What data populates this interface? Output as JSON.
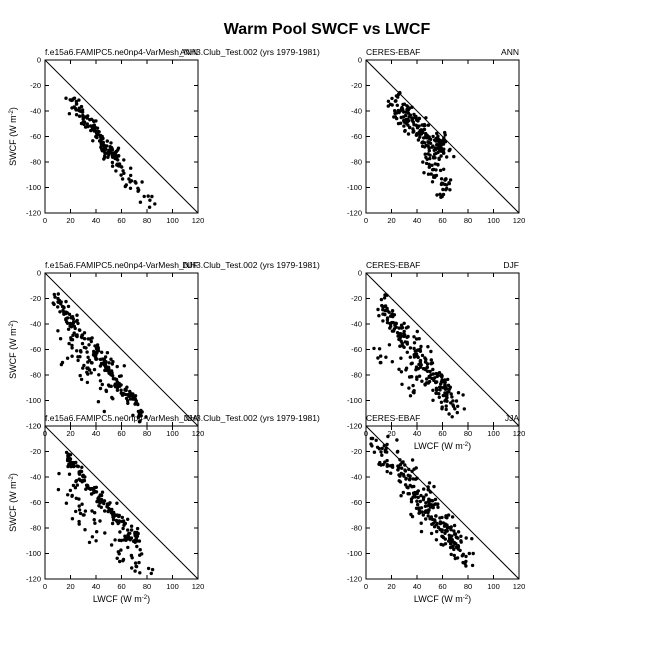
{
  "figure": {
    "title": "Warm Pool SWCF vs LWCF"
  },
  "colors": {
    "points": "#000000",
    "axes": "#000000",
    "background": "#ffffff"
  },
  "chart_data": [
    {
      "type": "scatter",
      "id": "model-ann",
      "left_label": "f.e15a6.FAMIPC5.ne0np4-VarMesh_NH3.Club_Test.002 (yrs 1979-1981)",
      "right_label": "ANN",
      "xlabel": "",
      "ylabel": "SWCF (W m-2)",
      "xlim": [
        0,
        120
      ],
      "ylim": [
        -120,
        0
      ],
      "xticks": [
        "0",
        "20",
        "40",
        "60",
        "80",
        "100",
        "120"
      ],
      "yticks": [
        "0",
        "-20",
        "-40",
        "-60",
        "-80",
        "-100",
        "-120"
      ],
      "reference_line": [
        [
          0,
          0
        ],
        [
          120,
          -120
        ]
      ],
      "cloud": {
        "x0": 20,
        "y0": -30,
        "x1": 62,
        "y1": -85,
        "spread": 3.5,
        "n": 130,
        "tail": {
          "x0": 40,
          "y0": -62,
          "x1": 85,
          "y1": -115,
          "spread": 5,
          "n": 40
        }
      }
    },
    {
      "type": "scatter",
      "id": "obs-ann",
      "left_label": "CERES-EBAF",
      "right_label": "ANN",
      "xlabel": "",
      "ylabel": "",
      "xlim": [
        0,
        120
      ],
      "ylim": [
        -120,
        0
      ],
      "xticks": [
        "0",
        "20",
        "40",
        "60",
        "80",
        "100",
        "120"
      ],
      "yticks": [
        "0",
        "-20",
        "-40",
        "-60",
        "-80",
        "-100",
        "-120"
      ],
      "reference_line": [
        [
          0,
          0
        ],
        [
          120,
          -120
        ]
      ],
      "cloud": {
        "x0": 22,
        "y0": -35,
        "x1": 62,
        "y1": -72,
        "spread": 5,
        "n": 170,
        "tail": {
          "x0": 40,
          "y0": -60,
          "x1": 66,
          "y1": -105,
          "spread": 6,
          "n": 60
        }
      }
    },
    {
      "type": "scatter",
      "id": "model-djf",
      "left_label": "f.e15a6.FAMIPC5.ne0np4-VarMesh_NH3.Club_Test.002 (yrs 1979-1981)",
      "right_label": "DJF",
      "xlabel": "",
      "ylabel": "SWCF (W m-2)",
      "xlim": [
        0,
        120
      ],
      "ylim": [
        -120,
        0
      ],
      "xticks": [
        "0",
        "20",
        "40",
        "60",
        "80",
        "100",
        "120"
      ],
      "yticks": [
        "0",
        "-20",
        "-40",
        "-60",
        "-80",
        "-100",
        "-120"
      ],
      "reference_line": [
        [
          0,
          0
        ],
        [
          120,
          -120
        ]
      ],
      "cloud": {
        "x0": 7,
        "y0": -18,
        "x1": 76,
        "y1": -112,
        "spread": 3.5,
        "n": 170,
        "tail": {
          "x0": 14,
          "y0": -55,
          "x1": 60,
          "y1": -95,
          "spread": 10,
          "n": 70
        }
      }
    },
    {
      "type": "scatter",
      "id": "obs-djf",
      "left_label": "CERES-EBAF",
      "right_label": "DJF",
      "xlabel": "LWCF (W m-2)",
      "ylabel": "",
      "xlim": [
        0,
        120
      ],
      "ylim": [
        -120,
        0
      ],
      "xticks": [
        "0",
        "20",
        "40",
        "60",
        "80",
        "100",
        "120"
      ],
      "yticks": [
        "0",
        "-20",
        "-40",
        "-60",
        "-80",
        "-100",
        "-120"
      ],
      "reference_line": [
        [
          0,
          0
        ],
        [
          120,
          -120
        ]
      ],
      "cloud": {
        "x0": 10,
        "y0": -22,
        "x1": 72,
        "y1": -105,
        "spread": 5,
        "n": 190,
        "tail": {
          "x0": 12,
          "y0": -55,
          "x1": 60,
          "y1": -95,
          "spread": 8,
          "n": 50
        }
      }
    },
    {
      "type": "scatter",
      "id": "model-jja",
      "left_label": "f.e15a6.FAMIPC5.ne0np4-VarMesh_NH3.Club_Test.002 (yrs 1979-1981)",
      "right_label": "JJA",
      "xlabel": "LWCF (W m-2)",
      "ylabel": "SWCF (W m-2)",
      "xlim": [
        0,
        120
      ],
      "ylim": [
        -120,
        0
      ],
      "xticks": [
        "0",
        "20",
        "40",
        "60",
        "80",
        "100",
        "120"
      ],
      "yticks": [
        "0",
        "-20",
        "-40",
        "-60",
        "-80",
        "-100",
        "-120"
      ],
      "reference_line": [
        [
          0,
          0
        ],
        [
          120,
          -120
        ]
      ],
      "cloud": {
        "x0": 16,
        "y0": -22,
        "x1": 75,
        "y1": -95,
        "spread": 3.5,
        "n": 150,
        "tail": {
          "x0": 12,
          "y0": -45,
          "x1": 82,
          "y1": -120,
          "spread": 9,
          "n": 70
        }
      }
    },
    {
      "type": "scatter",
      "id": "obs-jja",
      "left_label": "CERES-EBAF",
      "right_label": "JJA",
      "xlabel": "LWCF (W m-2)",
      "ylabel": "",
      "xlim": [
        0,
        120
      ],
      "ylim": [
        -120,
        0
      ],
      "xticks": [
        "0",
        "20",
        "40",
        "60",
        "80",
        "100",
        "120"
      ],
      "yticks": [
        "0",
        "-20",
        "-40",
        "-60",
        "-80",
        "-100",
        "-120"
      ],
      "reference_line": [
        [
          0,
          0
        ],
        [
          120,
          -120
        ]
      ],
      "cloud": {
        "x0": 8,
        "y0": -14,
        "x1": 80,
        "y1": -103,
        "spread": 7,
        "n": 200,
        "tail": {
          "x0": 30,
          "y0": -45,
          "x1": 70,
          "y1": -95,
          "spread": 8,
          "n": 50
        }
      }
    }
  ]
}
